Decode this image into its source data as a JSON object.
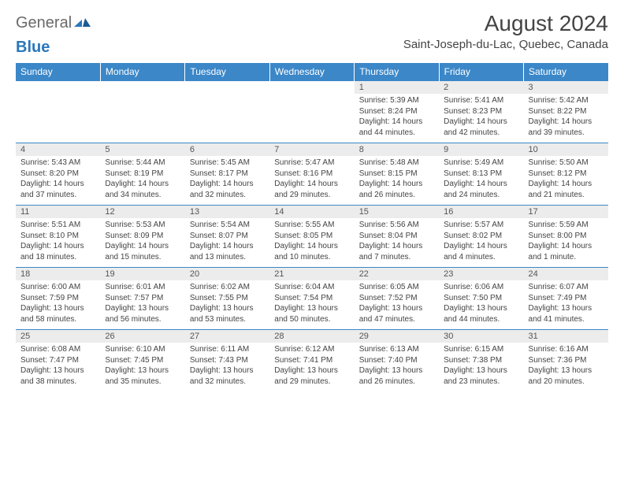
{
  "logo": {
    "part1": "General",
    "part2": "Blue"
  },
  "title": "August 2024",
  "location": "Saint-Joseph-du-Lac, Quebec, Canada",
  "colors": {
    "header_bg": "#3b87c8",
    "header_text": "#ffffff",
    "daynum_bg": "#ececec",
    "row_border": "#3b87c8",
    "text": "#444444",
    "logo_gray": "#6a6a6a",
    "logo_blue": "#2a77bb"
  },
  "typography": {
    "title_size": 28,
    "location_size": 15,
    "dayheader_size": 12,
    "body_size": 10
  },
  "day_headers": [
    "Sunday",
    "Monday",
    "Tuesday",
    "Wednesday",
    "Thursday",
    "Friday",
    "Saturday"
  ],
  "weeks": [
    [
      {
        "n": "",
        "sr": "",
        "ss": "",
        "dl": ""
      },
      {
        "n": "",
        "sr": "",
        "ss": "",
        "dl": ""
      },
      {
        "n": "",
        "sr": "",
        "ss": "",
        "dl": ""
      },
      {
        "n": "",
        "sr": "",
        "ss": "",
        "dl": ""
      },
      {
        "n": "1",
        "sr": "Sunrise: 5:39 AM",
        "ss": "Sunset: 8:24 PM",
        "dl": "Daylight: 14 hours and 44 minutes."
      },
      {
        "n": "2",
        "sr": "Sunrise: 5:41 AM",
        "ss": "Sunset: 8:23 PM",
        "dl": "Daylight: 14 hours and 42 minutes."
      },
      {
        "n": "3",
        "sr": "Sunrise: 5:42 AM",
        "ss": "Sunset: 8:22 PM",
        "dl": "Daylight: 14 hours and 39 minutes."
      }
    ],
    [
      {
        "n": "4",
        "sr": "Sunrise: 5:43 AM",
        "ss": "Sunset: 8:20 PM",
        "dl": "Daylight: 14 hours and 37 minutes."
      },
      {
        "n": "5",
        "sr": "Sunrise: 5:44 AM",
        "ss": "Sunset: 8:19 PM",
        "dl": "Daylight: 14 hours and 34 minutes."
      },
      {
        "n": "6",
        "sr": "Sunrise: 5:45 AM",
        "ss": "Sunset: 8:17 PM",
        "dl": "Daylight: 14 hours and 32 minutes."
      },
      {
        "n": "7",
        "sr": "Sunrise: 5:47 AM",
        "ss": "Sunset: 8:16 PM",
        "dl": "Daylight: 14 hours and 29 minutes."
      },
      {
        "n": "8",
        "sr": "Sunrise: 5:48 AM",
        "ss": "Sunset: 8:15 PM",
        "dl": "Daylight: 14 hours and 26 minutes."
      },
      {
        "n": "9",
        "sr": "Sunrise: 5:49 AM",
        "ss": "Sunset: 8:13 PM",
        "dl": "Daylight: 14 hours and 24 minutes."
      },
      {
        "n": "10",
        "sr": "Sunrise: 5:50 AM",
        "ss": "Sunset: 8:12 PM",
        "dl": "Daylight: 14 hours and 21 minutes."
      }
    ],
    [
      {
        "n": "11",
        "sr": "Sunrise: 5:51 AM",
        "ss": "Sunset: 8:10 PM",
        "dl": "Daylight: 14 hours and 18 minutes."
      },
      {
        "n": "12",
        "sr": "Sunrise: 5:53 AM",
        "ss": "Sunset: 8:09 PM",
        "dl": "Daylight: 14 hours and 15 minutes."
      },
      {
        "n": "13",
        "sr": "Sunrise: 5:54 AM",
        "ss": "Sunset: 8:07 PM",
        "dl": "Daylight: 14 hours and 13 minutes."
      },
      {
        "n": "14",
        "sr": "Sunrise: 5:55 AM",
        "ss": "Sunset: 8:05 PM",
        "dl": "Daylight: 14 hours and 10 minutes."
      },
      {
        "n": "15",
        "sr": "Sunrise: 5:56 AM",
        "ss": "Sunset: 8:04 PM",
        "dl": "Daylight: 14 hours and 7 minutes."
      },
      {
        "n": "16",
        "sr": "Sunrise: 5:57 AM",
        "ss": "Sunset: 8:02 PM",
        "dl": "Daylight: 14 hours and 4 minutes."
      },
      {
        "n": "17",
        "sr": "Sunrise: 5:59 AM",
        "ss": "Sunset: 8:00 PM",
        "dl": "Daylight: 14 hours and 1 minute."
      }
    ],
    [
      {
        "n": "18",
        "sr": "Sunrise: 6:00 AM",
        "ss": "Sunset: 7:59 PM",
        "dl": "Daylight: 13 hours and 58 minutes."
      },
      {
        "n": "19",
        "sr": "Sunrise: 6:01 AM",
        "ss": "Sunset: 7:57 PM",
        "dl": "Daylight: 13 hours and 56 minutes."
      },
      {
        "n": "20",
        "sr": "Sunrise: 6:02 AM",
        "ss": "Sunset: 7:55 PM",
        "dl": "Daylight: 13 hours and 53 minutes."
      },
      {
        "n": "21",
        "sr": "Sunrise: 6:04 AM",
        "ss": "Sunset: 7:54 PM",
        "dl": "Daylight: 13 hours and 50 minutes."
      },
      {
        "n": "22",
        "sr": "Sunrise: 6:05 AM",
        "ss": "Sunset: 7:52 PM",
        "dl": "Daylight: 13 hours and 47 minutes."
      },
      {
        "n": "23",
        "sr": "Sunrise: 6:06 AM",
        "ss": "Sunset: 7:50 PM",
        "dl": "Daylight: 13 hours and 44 minutes."
      },
      {
        "n": "24",
        "sr": "Sunrise: 6:07 AM",
        "ss": "Sunset: 7:49 PM",
        "dl": "Daylight: 13 hours and 41 minutes."
      }
    ],
    [
      {
        "n": "25",
        "sr": "Sunrise: 6:08 AM",
        "ss": "Sunset: 7:47 PM",
        "dl": "Daylight: 13 hours and 38 minutes."
      },
      {
        "n": "26",
        "sr": "Sunrise: 6:10 AM",
        "ss": "Sunset: 7:45 PM",
        "dl": "Daylight: 13 hours and 35 minutes."
      },
      {
        "n": "27",
        "sr": "Sunrise: 6:11 AM",
        "ss": "Sunset: 7:43 PM",
        "dl": "Daylight: 13 hours and 32 minutes."
      },
      {
        "n": "28",
        "sr": "Sunrise: 6:12 AM",
        "ss": "Sunset: 7:41 PM",
        "dl": "Daylight: 13 hours and 29 minutes."
      },
      {
        "n": "29",
        "sr": "Sunrise: 6:13 AM",
        "ss": "Sunset: 7:40 PM",
        "dl": "Daylight: 13 hours and 26 minutes."
      },
      {
        "n": "30",
        "sr": "Sunrise: 6:15 AM",
        "ss": "Sunset: 7:38 PM",
        "dl": "Daylight: 13 hours and 23 minutes."
      },
      {
        "n": "31",
        "sr": "Sunrise: 6:16 AM",
        "ss": "Sunset: 7:36 PM",
        "dl": "Daylight: 13 hours and 20 minutes."
      }
    ]
  ]
}
